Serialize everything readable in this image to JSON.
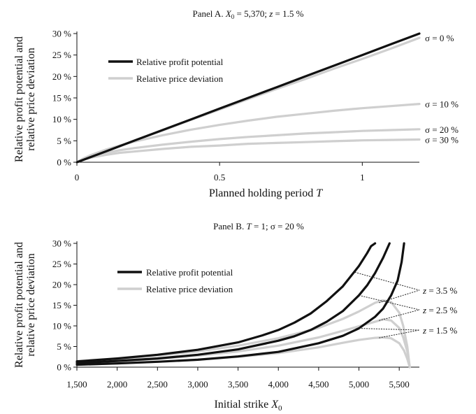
{
  "colors": {
    "profit": "#111111",
    "deviation": "#cfcfcf",
    "axis": "#111111",
    "leader": "#222222"
  },
  "chart_data": [
    {
      "type": "line",
      "title_parts": [
        "Panel A. ",
        "X",
        "0",
        " = 5,370; ",
        "z",
        " = 1.5 %"
      ],
      "xlabel_parts": [
        "Planned holding period ",
        "T"
      ],
      "ylabel": [
        "Relative profit potential and",
        "relative price deviation"
      ],
      "xlim": [
        0,
        1.2
      ],
      "ylim": [
        0,
        30
      ],
      "xticks": [
        0,
        0.5,
        1
      ],
      "xtick_labels": [
        "0",
        "0.5",
        "1"
      ],
      "yticks": [
        0,
        5,
        10,
        15,
        20,
        25,
        30
      ],
      "ytick_labels": [
        "0 %",
        "5 %",
        "10 %",
        "15 %",
        "20 %",
        "25 %",
        "30 %"
      ],
      "legend": {
        "placement": "upper-left",
        "entries": [
          {
            "label": "Relative profit potential",
            "series": "profit"
          },
          {
            "label": "Relative price deviation",
            "series": "deviation"
          }
        ]
      },
      "series": [
        {
          "kind": "profit",
          "x": [
            0,
            0.1,
            0.2,
            0.3,
            0.4,
            0.5,
            0.6,
            0.7,
            0.8,
            0.9,
            1.0,
            1.1,
            1.2
          ],
          "y": [
            0,
            2.5,
            5.0,
            7.5,
            10.0,
            12.5,
            15.0,
            17.5,
            20.0,
            22.5,
            25.0,
            27.5,
            30.0
          ]
        },
        {
          "kind": "deviation",
          "name": "σ = 0 %",
          "x": [
            0,
            0.1,
            0.2,
            0.3,
            0.4,
            0.5,
            0.6,
            0.7,
            0.8,
            0.9,
            1.0,
            1.1,
            1.2
          ],
          "y": [
            0,
            2.5,
            5.0,
            7.4,
            9.9,
            12.3,
            14.7,
            17.1,
            19.4,
            21.8,
            24.1,
            26.5,
            29.0
          ]
        },
        {
          "kind": "deviation",
          "name": "σ = 10 %",
          "x": [
            0,
            0.02,
            0.05,
            0.1,
            0.15,
            0.2,
            0.3,
            0.4,
            0.5,
            0.6,
            0.7,
            0.8,
            0.9,
            1.0,
            1.1,
            1.2
          ],
          "y": [
            0,
            0.8,
            1.7,
            2.9,
            3.9,
            4.8,
            6.3,
            7.6,
            8.7,
            9.7,
            10.6,
            11.3,
            12.0,
            12.6,
            13.1,
            13.6
          ]
        },
        {
          "kind": "deviation",
          "name": "σ = 20 %",
          "x": [
            0,
            0.02,
            0.05,
            0.1,
            0.15,
            0.2,
            0.3,
            0.4,
            0.5,
            0.6,
            0.7,
            0.8,
            0.9,
            1.0,
            1.1,
            1.2
          ],
          "y": [
            0,
            0.7,
            1.4,
            2.2,
            2.8,
            3.3,
            4.1,
            4.8,
            5.4,
            5.9,
            6.3,
            6.7,
            7.0,
            7.3,
            7.5,
            7.7
          ]
        },
        {
          "kind": "deviation",
          "name": "σ = 30 %",
          "x": [
            0,
            0.02,
            0.05,
            0.1,
            0.15,
            0.2,
            0.3,
            0.4,
            0.5,
            0.6,
            0.7,
            0.8,
            0.9,
            1.0,
            1.1,
            1.2
          ],
          "y": [
            0,
            0.6,
            1.1,
            1.7,
            2.2,
            2.5,
            3.1,
            3.6,
            3.9,
            4.3,
            4.5,
            4.7,
            4.9,
            5.1,
            5.2,
            5.3
          ]
        }
      ]
    },
    {
      "type": "line",
      "title_parts": [
        "Panel B. ",
        "T",
        " = 1; σ = 20 %"
      ],
      "xlabel_parts": [
        "Initial strike ",
        "X",
        "0"
      ],
      "ylabel": [
        "Relative profit potential and",
        "relative price deviation"
      ],
      "xlim": [
        1500,
        5750
      ],
      "ylim": [
        0,
        30
      ],
      "xticks": [
        1500,
        2000,
        2500,
        3000,
        3500,
        4000,
        4500,
        5000,
        5500
      ],
      "xtick_labels": [
        "1,500",
        "2,000",
        "2,500",
        "3,000",
        "3,500",
        "4,000",
        "4,500",
        "5,000",
        "5,500"
      ],
      "yticks": [
        0,
        5,
        10,
        15,
        20,
        25,
        30
      ],
      "ytick_labels": [
        "0 %",
        "5 %",
        "10 %",
        "15 %",
        "20 %",
        "25 %",
        "30 %"
      ],
      "legend": {
        "placement": "middle-left",
        "entries": [
          {
            "label": "Relative profit potential",
            "series": "profit"
          },
          {
            "label": "Relative price deviation",
            "series": "deviation"
          }
        ]
      },
      "series": [
        {
          "kind": "profit",
          "name": "z = 3.5 %",
          "x": [
            1500,
            2000,
            2500,
            3000,
            3500,
            3800,
            4000,
            4200,
            4400,
            4600,
            4800,
            5000,
            5100,
            5150,
            5200
          ],
          "y": [
            1.4,
            2.1,
            3.0,
            4.2,
            6.0,
            7.7,
            9.0,
            10.8,
            13.0,
            16.0,
            19.6,
            24.5,
            27.6,
            29.3,
            30.0
          ]
        },
        {
          "kind": "profit",
          "name": "z = 2.5 %",
          "x": [
            1500,
            2000,
            2500,
            3000,
            3500,
            4000,
            4200,
            4400,
            4600,
            4800,
            5000,
            5100,
            5200,
            5300,
            5380
          ],
          "y": [
            1.0,
            1.5,
            2.1,
            3.0,
            4.3,
            6.4,
            7.5,
            9.0,
            11.0,
            13.6,
            17.4,
            19.8,
            22.8,
            26.5,
            30.0
          ]
        },
        {
          "kind": "profit",
          "name": "z = 1.5 %",
          "x": [
            1500,
            2000,
            2500,
            3000,
            3500,
            4000,
            4500,
            4800,
            5000,
            5200,
            5300,
            5400,
            5480,
            5530,
            5560
          ],
          "y": [
            0.6,
            0.9,
            1.3,
            1.8,
            2.6,
            3.7,
            5.8,
            7.6,
            9.4,
            12.2,
            14.2,
            17.4,
            21.0,
            25.5,
            30.0
          ]
        },
        {
          "kind": "deviation",
          "name": "z = 3.5 %",
          "x": [
            1500,
            2000,
            2500,
            3000,
            3500,
            4000,
            4500,
            4800,
            5000,
            5200,
            5300,
            5400,
            5500,
            5550,
            5600,
            5630
          ],
          "y": [
            1.3,
            2.0,
            2.8,
            3.8,
            5.2,
            7.0,
            9.5,
            11.7,
            13.5,
            15.6,
            16.2,
            15.8,
            13.2,
            10.0,
            5.0,
            0
          ]
        },
        {
          "kind": "deviation",
          "name": "z = 2.5 %",
          "x": [
            1500,
            2000,
            2500,
            3000,
            3500,
            4000,
            4500,
            4800,
            5000,
            5200,
            5300,
            5400,
            5500,
            5550,
            5600,
            5630
          ],
          "y": [
            1.0,
            1.4,
            2.0,
            2.8,
            3.8,
            5.2,
            7.2,
            8.8,
            9.9,
            11.0,
            11.6,
            11.3,
            9.5,
            7.2,
            3.8,
            0
          ]
        },
        {
          "kind": "deviation",
          "name": "z = 1.5 %",
          "x": [
            1500,
            2000,
            2500,
            3000,
            3500,
            4000,
            4500,
            4800,
            5000,
            5200,
            5300,
            5400,
            5500,
            5560,
            5600,
            5630
          ],
          "y": [
            0.6,
            0.9,
            1.3,
            1.8,
            2.5,
            3.4,
            4.8,
            5.9,
            6.6,
            7.1,
            7.2,
            7.0,
            5.8,
            4.0,
            2.0,
            0
          ]
        }
      ],
      "annotations": [
        {
          "label_parts": [
            "z",
            " = 3.5 %"
          ],
          "profit_at": [
            4950,
            23.0
          ],
          "deviation_at": [
            5250,
            15.6
          ]
        },
        {
          "label_parts": [
            "z",
            " = 2.5 %"
          ],
          "profit_at": [
            5000,
            17.4
          ],
          "deviation_at": [
            5250,
            11.3
          ]
        },
        {
          "label_parts": [
            "z",
            " = 1.5 %"
          ],
          "profit_at": [
            5000,
            9.4
          ],
          "deviation_at": [
            5250,
            7.1
          ]
        }
      ]
    }
  ]
}
